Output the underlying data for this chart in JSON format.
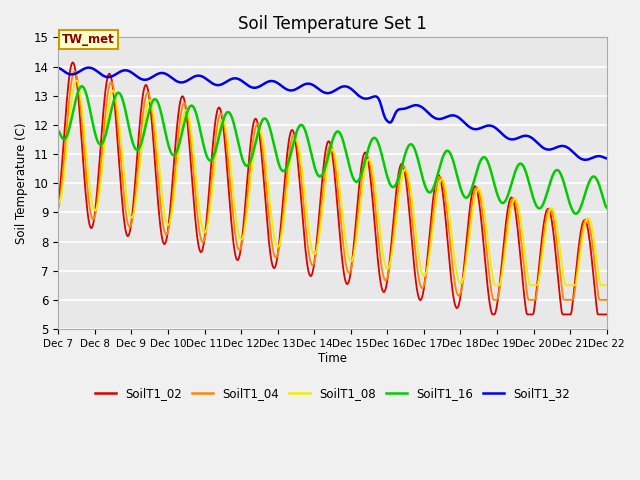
{
  "title": "Soil Temperature Set 1",
  "ylabel": "Soil Temperature (C)",
  "xlabel": "Time",
  "ylim": [
    5.0,
    15.0
  ],
  "yticks": [
    5.0,
    6.0,
    7.0,
    8.0,
    9.0,
    10.0,
    11.0,
    12.0,
    13.0,
    14.0,
    15.0
  ],
  "annotation": "TW_met",
  "bg_color": "#e8e8e8",
  "fig_bg": "#f0f0f0",
  "series_colors": {
    "SoilT1_02": "#dd0000",
    "SoilT1_04": "#ff8800",
    "SoilT1_08": "#eeee00",
    "SoilT1_16": "#00cc00",
    "SoilT1_32": "#0000ee"
  },
  "xtick_labels": [
    "Dec 7",
    "Dec 8",
    "Dec 9",
    "Dec 10",
    "Dec 11",
    "Dec 12",
    "Dec 13",
    "Dec 14",
    "Dec 15",
    "Dec 16",
    "Dec 17",
    "Dec 18",
    "Dec 19",
    "Dec 20",
    "Dec 21",
    "Dec 22"
  ],
  "linewidths": {
    "SoilT1_02": 1.3,
    "SoilT1_04": 1.3,
    "SoilT1_08": 1.3,
    "SoilT1_16": 1.8,
    "SoilT1_32": 1.8
  }
}
